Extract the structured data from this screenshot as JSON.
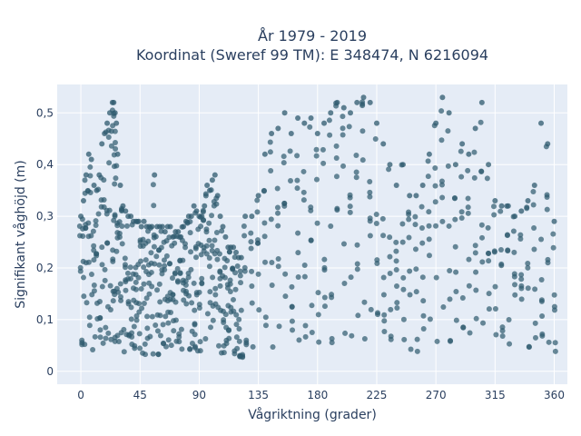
{
  "chart_data": {
    "type": "scatter",
    "title_line1": "År 1979 - 2019",
    "title_line2": "Koordinat (Sweref 99 TM): E 348474, N 6216094",
    "xlabel": "Vågriktning (grader)",
    "ylabel": "Signifikant våghöjd (m)",
    "xlim": [
      -18,
      370
    ],
    "ylim": [
      -0.025,
      0.555
    ],
    "xticks": [
      0,
      45,
      90,
      135,
      180,
      225,
      270,
      315,
      360
    ],
    "xtick_labels": [
      "0",
      "45",
      "90",
      "135",
      "180",
      "225",
      "270",
      "315",
      "360"
    ],
    "yticks": [
      0,
      0.1,
      0.2,
      0.3,
      0.4,
      0.5
    ],
    "ytick_labels": [
      "0",
      "0,1",
      "0,2",
      "0,3",
      "0,4",
      "0,5"
    ],
    "grid": true,
    "marker_color": "#2e5a6e",
    "background_color": "#e5ecf6",
    "series": [
      {
        "x": [
          0,
          2,
          4,
          6,
          8,
          10,
          12,
          14,
          16,
          18,
          20,
          22,
          24,
          25,
          26,
          27,
          28,
          30,
          32,
          34,
          36,
          38,
          40,
          42,
          44,
          46,
          48,
          50,
          52,
          54,
          56,
          58,
          60,
          62,
          64,
          66,
          68,
          70,
          72,
          74,
          76,
          78,
          80,
          82,
          84,
          86,
          88,
          90,
          92,
          94,
          96,
          98,
          100,
          102,
          104,
          106,
          108,
          110,
          112,
          114,
          116,
          118,
          120,
          122
        ],
        "y": [
          0.3,
          0.33,
          0.38,
          0.42,
          0.41,
          0.36,
          0.35,
          0.38,
          0.44,
          0.46,
          0.48,
          0.5,
          0.52,
          0.52,
          0.5,
          0.48,
          0.42,
          0.36,
          0.32,
          0.31,
          0.3,
          0.3,
          0.29,
          0.29,
          0.29,
          0.28,
          0.29,
          0.28,
          0.28,
          0.28,
          0.38,
          0.28,
          0.28,
          0.28,
          0.27,
          0.28,
          0.28,
          0.26,
          0.27,
          0.27,
          0.26,
          0.28,
          0.29,
          0.3,
          0.3,
          0.32,
          0.31,
          0.3,
          0.3,
          0.32,
          0.36,
          0.35,
          0.37,
          0.38,
          0.34,
          0.3,
          0.28,
          0.26,
          0.24,
          0.24,
          0.24,
          0.23,
          0.22,
          0.22
        ]
      },
      {
        "x": [
          125,
          130,
          135,
          140,
          145,
          150,
          155,
          160,
          165,
          170,
          175,
          180,
          185,
          190,
          195,
          200,
          205,
          210,
          215,
          220,
          225,
          230,
          235,
          240,
          245,
          250,
          255,
          260,
          265,
          270,
          275,
          280,
          285,
          290,
          295,
          300,
          305,
          310,
          315,
          320,
          325,
          330,
          335,
          340,
          345,
          350,
          355,
          360
        ],
        "y": [
          0.3,
          0.3,
          0.34,
          0.42,
          0.46,
          0.47,
          0.5,
          0.46,
          0.49,
          0.48,
          0.49,
          0.46,
          0.48,
          0.5,
          0.52,
          0.51,
          0.5,
          0.52,
          0.53,
          0.52,
          0.48,
          0.44,
          0.4,
          0.36,
          0.4,
          0.34,
          0.34,
          0.36,
          0.42,
          0.48,
          0.53,
          0.5,
          0.4,
          0.44,
          0.42,
          0.47,
          0.52,
          0.4,
          0.33,
          0.32,
          0.32,
          0.3,
          0.31,
          0.33,
          0.36,
          0.48,
          0.44,
          0.29
        ]
      }
    ]
  }
}
